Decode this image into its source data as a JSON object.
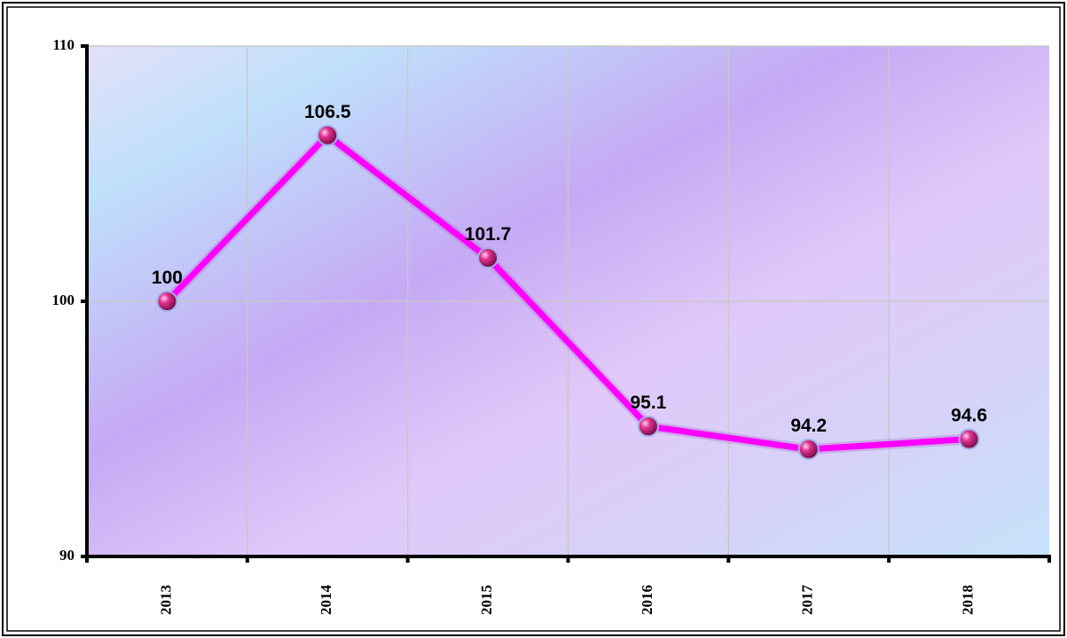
{
  "chart_data": {
    "type": "line",
    "categories": [
      "2013",
      "2014",
      "2015",
      "2016",
      "2017",
      "2018"
    ],
    "values": [
      100,
      106.5,
      101.7,
      95.1,
      94.2,
      94.6
    ],
    "color": "#ff00ff",
    "ylim": [
      90,
      110
    ],
    "yticks": [
      90,
      100,
      110
    ],
    "grid": true
  }
}
